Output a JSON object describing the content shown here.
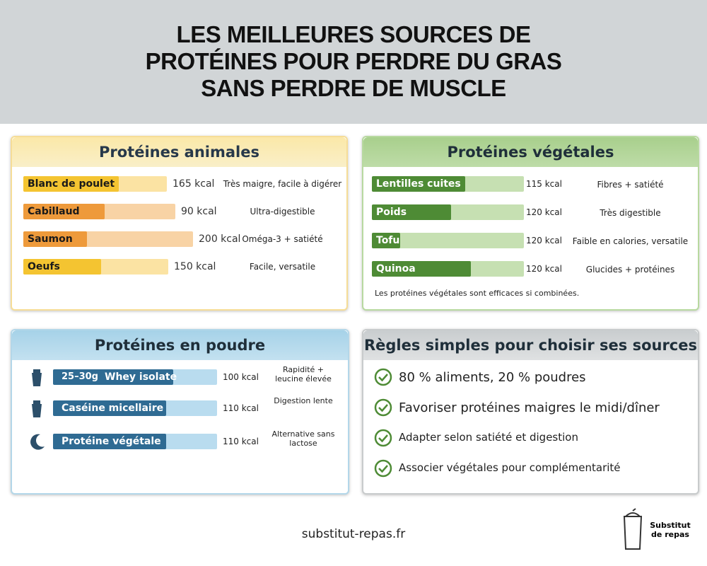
{
  "header": {
    "title_lines": [
      "LES MEILLEURES SOURCES DE",
      "PROTÉINES POUR PERDRE DU GRAS",
      "SANS PERDRE DE MUSCLE"
    ]
  },
  "animal": {
    "title": "Protéines animales",
    "items": [
      {
        "name": "Blanc de poulet",
        "kcal": "165 kcal",
        "note": "Très maigre, facile à digérer"
      },
      {
        "name": "Cabillaud",
        "kcal": "90 kcal",
        "note": "Ultra-digestible"
      },
      {
        "name": "Saumon",
        "kcal": "200 kcal",
        "note": "Oméga-3 + satiété"
      },
      {
        "name": "Oeufs",
        "kcal": "150 kcal",
        "note": "Facile, versatile"
      }
    ]
  },
  "vegetal": {
    "title": "Protéines végétales",
    "items": [
      {
        "name": "Lentilles cuites",
        "kcal": "115 kcal",
        "note": "Fibres + satiété"
      },
      {
        "name": "Poids",
        "kcal": "120 kcal",
        "note": "Très digestible"
      },
      {
        "name": "Tofu",
        "kcal": "120 kcal",
        "note": "Faible en calories, versatile"
      },
      {
        "name": "Quinoa",
        "kcal": "120 kcal",
        "note": "Glucides + protéines"
      }
    ],
    "footnote": "Les protéines végétales sont efficaces si combinées."
  },
  "powder": {
    "title": "Protéines en poudre",
    "items": [
      {
        "prefix": "25–30g",
        "name": "Whey isolate",
        "kcal": "100 kcal",
        "note": "Rapidité + leucine élevée"
      },
      {
        "name": "Caséine micellaire",
        "kcal": "110 kcal",
        "note": "Digestion lente"
      },
      {
        "name": "Protéine végétale",
        "kcal": "110 kcal",
        "note": "Alternative sans lactose"
      }
    ]
  },
  "rules": {
    "title": "Règles simples pour choisir ses sources",
    "items": [
      "80 % aliments, 20 % poudres",
      "Favoriser protéines maigres le midi/dîner",
      "Adapter selon satiété et digestion",
      "Associer végétales pour complémentarité"
    ]
  },
  "footer": {
    "url": "substitut-repas.fr",
    "logo": "Substitut de repas"
  }
}
